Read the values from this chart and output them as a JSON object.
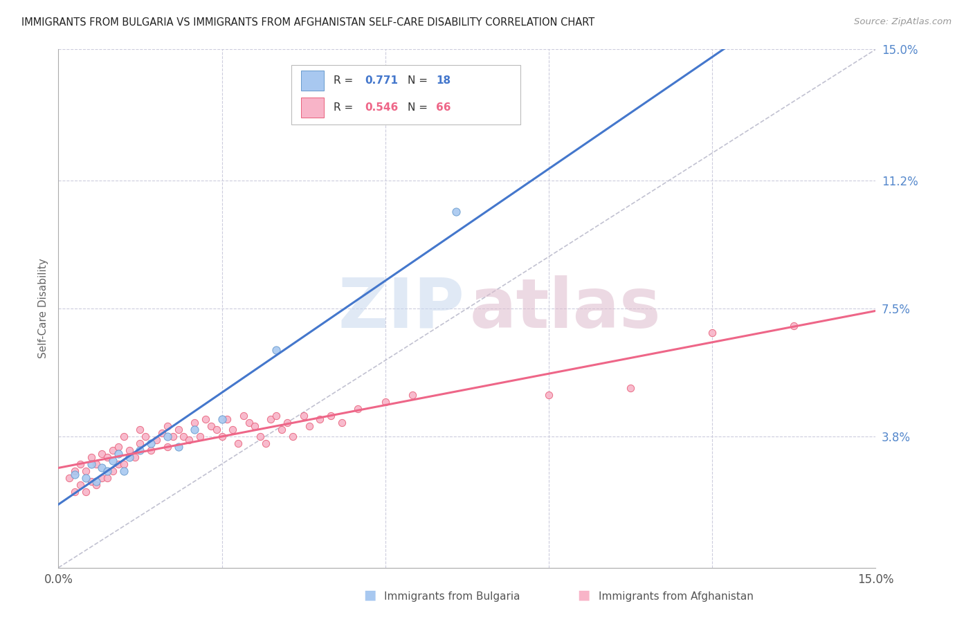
{
  "title": "IMMIGRANTS FROM BULGARIA VS IMMIGRANTS FROM AFGHANISTAN SELF-CARE DISABILITY CORRELATION CHART",
  "source": "Source: ZipAtlas.com",
  "ylabel": "Self-Care Disability",
  "xlim": [
    0.0,
    0.15
  ],
  "ylim": [
    0.0,
    0.15
  ],
  "bulgaria_color": "#A8C8F0",
  "bulgaria_edge": "#6699CC",
  "afghanistan_color": "#F8B4C8",
  "afghanistan_edge": "#E8607A",
  "bulgaria_line_color": "#4477CC",
  "afghanistan_line_color": "#EE6688",
  "diag_line_color": "#BBBBCC",
  "legend_r_bulgaria": "0.771",
  "legend_n_bulgaria": "18",
  "legend_r_afghanistan": "0.546",
  "legend_n_afghanistan": "66",
  "legend_color_bulgaria": "#4477CC",
  "legend_color_afghanistan": "#EE6688",
  "watermark_zip_color": "#C8D8EE",
  "watermark_atlas_color": "#DDBBCC",
  "bg_color": "#FFFFFF",
  "bulgaria_x": [
    0.003,
    0.005,
    0.006,
    0.007,
    0.008,
    0.009,
    0.01,
    0.011,
    0.012,
    0.013,
    0.015,
    0.017,
    0.02,
    0.022,
    0.025,
    0.03,
    0.04,
    0.073
  ],
  "bulgaria_y": [
    0.027,
    0.026,
    0.03,
    0.025,
    0.029,
    0.028,
    0.031,
    0.033,
    0.028,
    0.032,
    0.034,
    0.036,
    0.038,
    0.035,
    0.04,
    0.043,
    0.063,
    0.103
  ],
  "afghanistan_x": [
    0.002,
    0.003,
    0.003,
    0.004,
    0.004,
    0.005,
    0.005,
    0.006,
    0.006,
    0.007,
    0.007,
    0.008,
    0.008,
    0.009,
    0.009,
    0.01,
    0.01,
    0.011,
    0.011,
    0.012,
    0.012,
    0.013,
    0.014,
    0.015,
    0.015,
    0.016,
    0.017,
    0.018,
    0.019,
    0.02,
    0.02,
    0.021,
    0.022,
    0.023,
    0.024,
    0.025,
    0.026,
    0.027,
    0.028,
    0.029,
    0.03,
    0.031,
    0.032,
    0.033,
    0.034,
    0.035,
    0.036,
    0.037,
    0.038,
    0.039,
    0.04,
    0.041,
    0.042,
    0.043,
    0.045,
    0.046,
    0.048,
    0.05,
    0.052,
    0.055,
    0.06,
    0.065,
    0.09,
    0.105,
    0.12,
    0.135
  ],
  "afghanistan_y": [
    0.026,
    0.022,
    0.028,
    0.024,
    0.03,
    0.022,
    0.028,
    0.025,
    0.032,
    0.024,
    0.03,
    0.026,
    0.033,
    0.026,
    0.032,
    0.028,
    0.034,
    0.03,
    0.035,
    0.03,
    0.038,
    0.034,
    0.032,
    0.036,
    0.04,
    0.038,
    0.034,
    0.037,
    0.039,
    0.035,
    0.041,
    0.038,
    0.04,
    0.038,
    0.037,
    0.042,
    0.038,
    0.043,
    0.041,
    0.04,
    0.038,
    0.043,
    0.04,
    0.036,
    0.044,
    0.042,
    0.041,
    0.038,
    0.036,
    0.043,
    0.044,
    0.04,
    0.042,
    0.038,
    0.044,
    0.041,
    0.043,
    0.044,
    0.042,
    0.046,
    0.048,
    0.05,
    0.05,
    0.052,
    0.068,
    0.07
  ]
}
